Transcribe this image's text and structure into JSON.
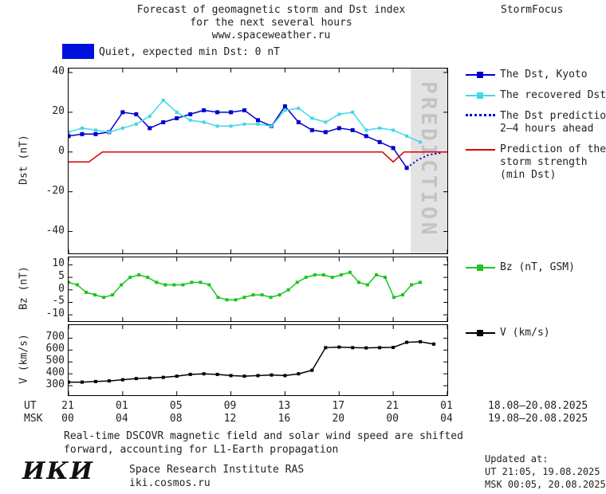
{
  "header": {
    "title_line1": "Forecast of geomagnetic storm and Dst index",
    "title_line2": "for the next several hours",
    "title_line3": "www.spaceweather.ru",
    "brand": "StormFocus"
  },
  "status": {
    "swatch_color": "#0011dd",
    "label": "Quiet, expected min Dst: 0 nT"
  },
  "axes": {
    "ut_label": "UT",
    "msk_label": "MSK",
    "ut_ticks": [
      "21",
      "01",
      "05",
      "09",
      "13",
      "17",
      "21",
      "01"
    ],
    "msk_ticks": [
      "00",
      "04",
      "08",
      "12",
      "16",
      "20",
      "00",
      "04"
    ],
    "ut_range": "18.08–20.08.2025",
    "msk_range": "19.08–20.08.2025"
  },
  "legend_main": {
    "items": [
      {
        "line1": "The Dst, Kyoto"
      },
      {
        "line1": "The recovered Dst"
      },
      {
        "line1": "The Dst prediction",
        "line2": "2–4 hours ahead"
      },
      {
        "line1": "Prediction of the",
        "line2": "storm strength",
        "line3": "(min Dst)"
      }
    ]
  },
  "legend_bz": {
    "label": "Bz (nT, GSM)"
  },
  "legend_v": {
    "label": "V (km/s)"
  },
  "chart_data": [
    {
      "id": "dst",
      "type": "line",
      "title": "Forecast of geomagnetic storm and Dst index",
      "ylabel": "Dst (nT)",
      "ylim": [
        -51,
        42
      ],
      "yticks": [
        40,
        20,
        0,
        -20,
        -40
      ],
      "xlim": [
        0,
        28
      ],
      "xticks": [
        0,
        4,
        8,
        12,
        16,
        20,
        24,
        28
      ],
      "band": {
        "label": "PREDICTION",
        "start_hour": 25.3,
        "end_hour": 28,
        "fill": "#e3e3e3",
        "text_color": "#c3c3c3"
      },
      "series": [
        {
          "id": "dst-kyoto",
          "name": "The Dst, Kyoto",
          "color": "#0000cc",
          "style": "solid",
          "marker": true,
          "msize": 5,
          "x_start": 0,
          "x_end": 25,
          "values": [
            8,
            9,
            9,
            10,
            20,
            19,
            12,
            15,
            17,
            19,
            21,
            20,
            20,
            21,
            16,
            13,
            23,
            15,
            11,
            10,
            12,
            11,
            8,
            5,
            2,
            -8
          ]
        },
        {
          "id": "recovered-dst",
          "name": "The recovered Dst",
          "color": "#40d8e8",
          "style": "solid",
          "marker": true,
          "msize": 4,
          "x_start": 0,
          "x_end": 26,
          "values": [
            10,
            12,
            11,
            10,
            12,
            14,
            18,
            26,
            20,
            16,
            15,
            13,
            13,
            14,
            14,
            13,
            21,
            22,
            17,
            15,
            19,
            20,
            11,
            12,
            11,
            8,
            5
          ]
        },
        {
          "id": "dst-prediction",
          "name": "The Dst prediction 2–4 hours ahead",
          "color": "#0000cc",
          "style": "dotted",
          "marker": false,
          "x": [
            25,
            25.8,
            26.6,
            27.5
          ],
          "values": [
            -8,
            -4,
            -1.5,
            -0.5
          ]
        },
        {
          "id": "storm-strength-prediction",
          "name": "Prediction of the storm strength (min Dst)",
          "color": "#dd0000",
          "style": "solid",
          "marker": false,
          "x": [
            0,
            1.5,
            2.5,
            23.2,
            24,
            24.8,
            28
          ],
          "values": [
            -5,
            -5,
            0,
            0,
            -5,
            0,
            0
          ]
        }
      ]
    },
    {
      "id": "bz",
      "type": "line",
      "ylabel": "Bz (nT)",
      "ylim": [
        -12.5,
        13
      ],
      "yticks": [
        10,
        5,
        0,
        -5,
        -10
      ],
      "xlim": [
        0,
        28
      ],
      "xticks": [
        0,
        4,
        8,
        12,
        16,
        20,
        24,
        28
      ],
      "series": [
        {
          "id": "bz-gsm",
          "name": "Bz (nT, GSM)",
          "color": "#1fc41f",
          "style": "solid",
          "marker": true,
          "msize": 4,
          "x_start": 0,
          "x_end": 26,
          "values": [
            3,
            2,
            -1,
            -2,
            -3,
            -2,
            2,
            5,
            6,
            5,
            3,
            2,
            2,
            2,
            3,
            3,
            2,
            -3,
            -4,
            -4,
            -3,
            -2,
            -2,
            -3,
            -2,
            0,
            3,
            5,
            6,
            6,
            5,
            6,
            7,
            3,
            2,
            6,
            5,
            -3,
            -2,
            2,
            3
          ]
        }
      ]
    },
    {
      "id": "v",
      "type": "line",
      "ylabel": "V (km/s)",
      "ylim": [
        220,
        810
      ],
      "yticks": [
        700,
        600,
        500,
        400,
        300
      ],
      "xlim": [
        0,
        28
      ],
      "xticks": [
        0,
        4,
        8,
        12,
        16,
        20,
        24,
        28
      ],
      "series": [
        {
          "id": "solar-wind-speed",
          "name": "V (km/s)",
          "color": "#000000",
          "style": "solid",
          "marker": true,
          "msize": 4,
          "x_start": 0,
          "x_end": 27,
          "values": [
            330,
            330,
            335,
            340,
            350,
            360,
            365,
            370,
            380,
            395,
            400,
            395,
            385,
            380,
            385,
            390,
            385,
            400,
            430,
            620,
            625,
            620,
            618,
            620,
            622,
            665,
            670,
            650
          ]
        }
      ]
    }
  ],
  "footer": {
    "note_line1": "Real-time DSCOVR magnetic field and solar wind speed are shifted",
    "note_line2": "forward, accounting for L1-Earth propagation",
    "logo": "ИКИ",
    "institute": "Space Research Institute RAS",
    "site": "iki.cosmos.ru",
    "updated_label": "Updated at:",
    "updated_ut": "UT  21:05, 19.08.2025",
    "updated_msk": "MSK 00:05, 20.08.2025"
  }
}
